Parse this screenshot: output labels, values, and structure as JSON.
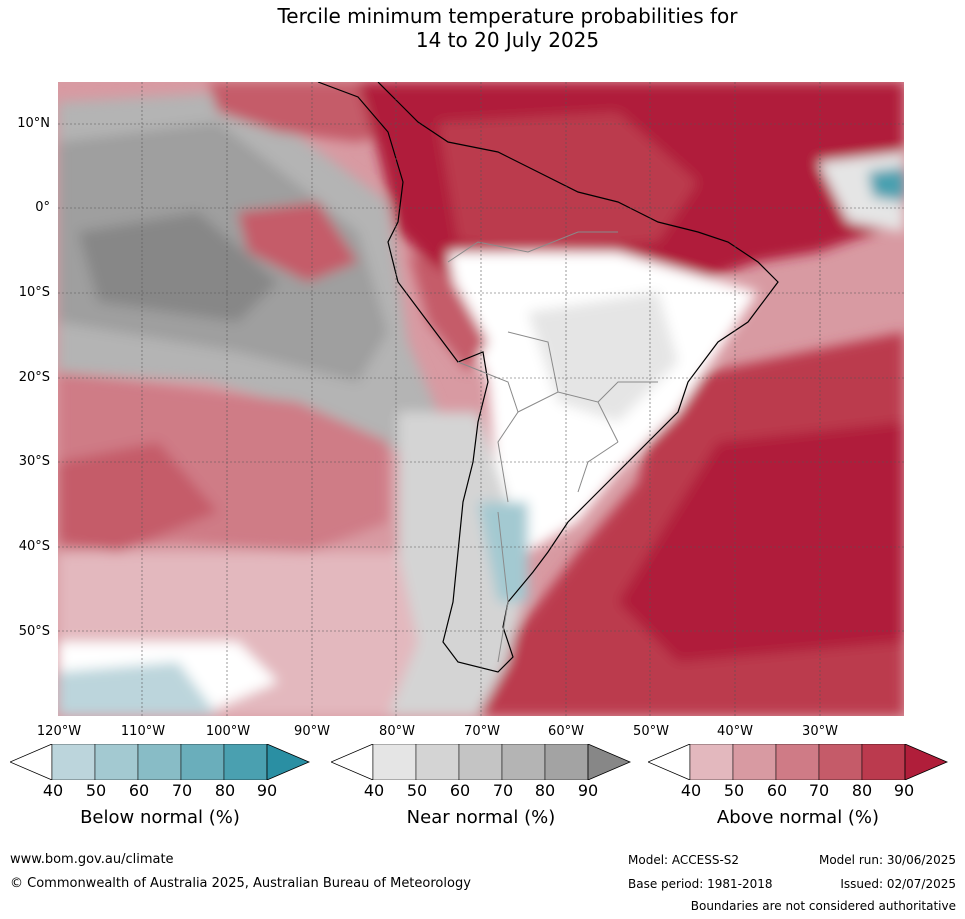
{
  "title_line1": "Tercile minimum temperature probabilities for",
  "title_line2": "14 to 20 July 2025",
  "lat_labels": [
    "10°N",
    "0°",
    "10°S",
    "20°S",
    "30°S",
    "40°S",
    "50°S"
  ],
  "lon_labels": [
    "120°W",
    "110°W",
    "100°W",
    "90°W",
    "80°W",
    "70°W",
    "60°W",
    "50°W",
    "40°W",
    "30°W"
  ],
  "colorbars": {
    "below": {
      "title": "Below normal (%)",
      "ticks": [
        "40",
        "50",
        "60",
        "70",
        "80",
        "90"
      ],
      "colors": [
        "#ffffff",
        "#bcd5dc",
        "#a3c9d1",
        "#88bcc6",
        "#6aaebb",
        "#4aa0b0",
        "#2a8fa3"
      ]
    },
    "near": {
      "title": "Near normal (%)",
      "ticks": [
        "40",
        "50",
        "60",
        "70",
        "80",
        "90"
      ],
      "colors": [
        "#ffffff",
        "#e5e5e5",
        "#d4d4d4",
        "#c4c4c4",
        "#b4b4b4",
        "#a3a3a3",
        "#878787"
      ]
    },
    "above": {
      "title": "Above normal (%)",
      "ticks": [
        "40",
        "50",
        "60",
        "70",
        "80",
        "90"
      ],
      "colors": [
        "#ffffff",
        "#e3b8be",
        "#d89aa2",
        "#cf7b86",
        "#c55b69",
        "#bb3a4e",
        "#b01e3a"
      ]
    }
  },
  "footer": {
    "url": "www.bom.gov.au/climate",
    "copyright": "© Commonwealth of Australia 2025, Australian Bureau of Meteorology",
    "model": "Model: ACCESS-S2",
    "base_period": "Base period: 1981-2018",
    "model_run": "Model run: 30/06/2025",
    "issued": "Issued: 02/07/2025",
    "disclaimer": "Boundaries are not considered authoritative"
  }
}
